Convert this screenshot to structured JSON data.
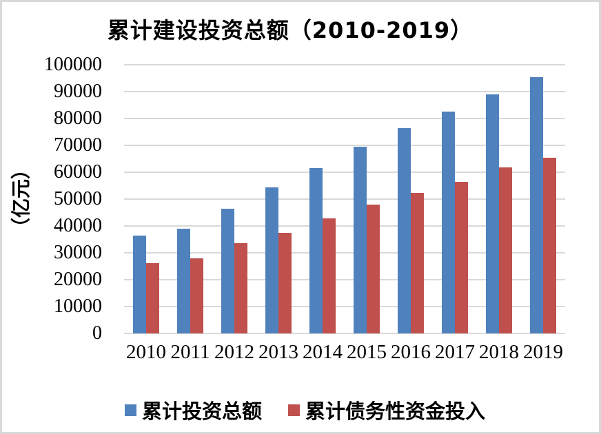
{
  "frame": {
    "background_color": "#FFFFFF",
    "border_color": "#D9D9D9"
  },
  "chart_data": {
    "type": "bar",
    "title": "累计建设投资总额（2010-2019）",
    "xlabel": "",
    "ylabel": "（亿元）",
    "categories": [
      "2010",
      "2011",
      "2012",
      "2013",
      "2014",
      "2015",
      "2016",
      "2017",
      "2018",
      "2019"
    ],
    "series": [
      {
        "key": "total-investment",
        "name": "累计投资总额",
        "color": "#4F81BD",
        "values": [
          36400,
          39000,
          46500,
          54300,
          61600,
          69400,
          76300,
          82600,
          89000,
          95500
        ]
      },
      {
        "key": "debt-capital-input",
        "name": "累计债务性资金投入",
        "color": "#C0504D",
        "values": [
          26100,
          28000,
          33600,
          37500,
          42700,
          47900,
          52400,
          56500,
          61900,
          65500
        ]
      }
    ],
    "ylim": [
      0,
      100000
    ],
    "yticks": [
      0,
      10000,
      20000,
      30000,
      40000,
      50000,
      60000,
      70000,
      80000,
      90000,
      100000
    ],
    "grid": true,
    "gridline_color": "#D9D9D9",
    "legend_position": "bottom"
  }
}
